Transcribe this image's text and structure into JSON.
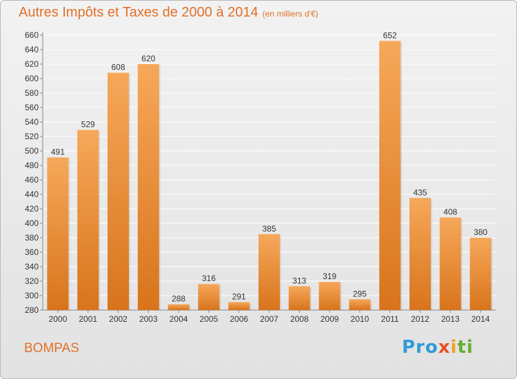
{
  "header": {
    "title": "Autres Impôts et Taxes de 2000 à 2014",
    "subtitle": "(en milliers d'€)"
  },
  "footer": {
    "place": "BOMPAS",
    "brand": [
      "Pro",
      "x",
      "i",
      "ti"
    ]
  },
  "colors": {
    "title": "#e0702a",
    "bar_top": "#f6a85a",
    "bar_bottom": "#d8741c",
    "grid": "#ffffff",
    "axis": "#888888"
  },
  "chart_data": {
    "type": "bar",
    "title": "Autres Impôts et Taxes de 2000 à 2014",
    "subtitle": "(en milliers d'€)",
    "categories": [
      "2000",
      "2001",
      "2002",
      "2003",
      "2004",
      "2005",
      "2006",
      "2007",
      "2008",
      "2009",
      "2010",
      "2011",
      "2012",
      "2013",
      "2014"
    ],
    "values": [
      491,
      529,
      608,
      620,
      288,
      316,
      291,
      385,
      313,
      319,
      295,
      652,
      435,
      408,
      380
    ],
    "ylim": [
      280,
      660
    ],
    "ytick_step": 20,
    "xlabel": "",
    "ylabel": "",
    "grid": true,
    "data_labels": true
  }
}
